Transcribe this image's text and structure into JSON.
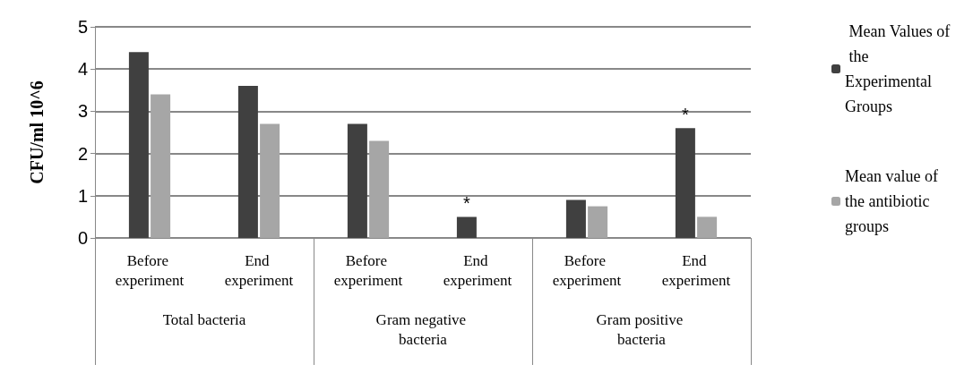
{
  "chart_data": {
    "type": "bar",
    "ylabel": "CFU/ml 10^6",
    "categories": [
      "Before experiment",
      "End experiment",
      "Before experiment",
      "End experiment",
      "Before experiment",
      "End experiment"
    ],
    "series": [
      {
        "name": " Mean Values of the Experimental Groups",
        "color": "#404040",
        "values": [
          4.4,
          3.6,
          2.7,
          0.5,
          0.9,
          2.6
        ],
        "value_labels": [
          null,
          null,
          null,
          "*",
          null,
          "*"
        ]
      },
      {
        "name": "Mean value of the antibiotic groups",
        "color": "#a6a6a6",
        "values": [
          3.4,
          2.7,
          2.3,
          0,
          0.75,
          0.5
        ]
      }
    ],
    "annotations": [
      "Total bacteria",
      "Gram negative bacteria",
      "Gram positive bacteria"
    ],
    "ylim": [
      0,
      5
    ],
    "yticks": [
      0,
      1,
      2,
      3,
      4,
      5
    ],
    "grid": "y",
    "legend": "right"
  }
}
